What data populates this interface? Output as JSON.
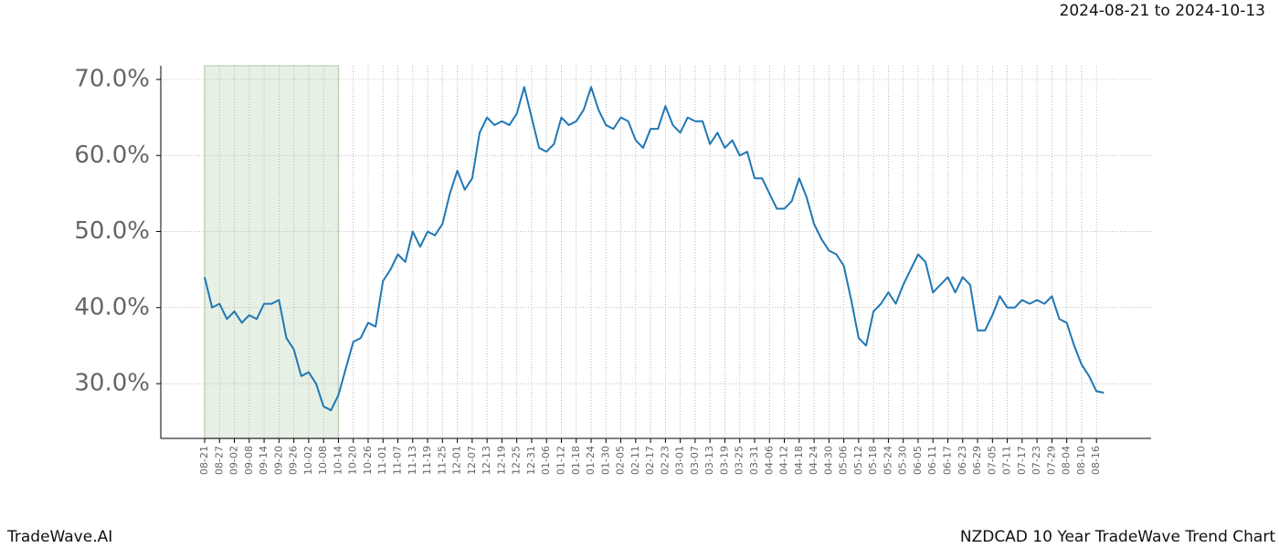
{
  "chart_data": {
    "type": "line",
    "title": "NZDCAD 10 Year TradeWave Trend Chart",
    "subtitle": "2024-08-21 to 2024-10-13",
    "brand": "TradeWave.AI",
    "categories": [
      "08-21",
      null,
      "08-27",
      null,
      "09-02",
      null,
      "09-08",
      null,
      "09-14",
      null,
      "09-20",
      null,
      "09-26",
      null,
      "10-02",
      null,
      "10-08",
      null,
      "10-14",
      null,
      "10-20",
      null,
      "10-26",
      null,
      "11-01",
      null,
      "11-07",
      null,
      "11-13",
      null,
      "11-19",
      null,
      "11-25",
      null,
      "12-01",
      null,
      "12-07",
      null,
      "12-13",
      null,
      "12-19",
      null,
      "12-25",
      null,
      "12-31",
      null,
      "01-06",
      null,
      "01-12",
      null,
      "01-18",
      null,
      "01-24",
      null,
      "01-30",
      null,
      "02-05",
      null,
      "02-11",
      null,
      "02-17",
      null,
      "02-23",
      null,
      "03-01",
      null,
      "03-07",
      null,
      "03-13",
      null,
      "03-19",
      null,
      "03-25",
      null,
      "03-31",
      null,
      "04-06",
      null,
      "04-12",
      null,
      "04-18",
      null,
      "04-24",
      null,
      "04-30",
      null,
      "05-06",
      null,
      "05-12",
      null,
      "05-18",
      null,
      "05-24",
      null,
      "05-30",
      null,
      "06-05",
      null,
      "06-11",
      null,
      "06-17",
      null,
      "06-23",
      null,
      "06-29",
      null,
      "07-05",
      null,
      "07-11",
      null,
      "07-17",
      null,
      "07-23",
      null,
      "07-29",
      null,
      "08-04",
      null,
      "08-10",
      null,
      "08-16",
      null
    ],
    "values": [
      44,
      40,
      40.5,
      38.5,
      39.5,
      38,
      39,
      38.5,
      40.5,
      40.5,
      41,
      36,
      34.5,
      31,
      31.5,
      30,
      27,
      26.5,
      28.5,
      32,
      35.5,
      36,
      38,
      37.5,
      43.5,
      45,
      47,
      46,
      50,
      48,
      50,
      49.5,
      51,
      55,
      58,
      55.5,
      57,
      63,
      65,
      64,
      64.5,
      64,
      65.5,
      69,
      65,
      61,
      60.5,
      61.5,
      65,
      64,
      64.5,
      66,
      69,
      66,
      64,
      63.5,
      65,
      64.5,
      62,
      61,
      63.5,
      63.5,
      66.5,
      64,
      63,
      65,
      64.5,
      64.5,
      61.5,
      63,
      61,
      62,
      60,
      60.5,
      57,
      57,
      55,
      53,
      53,
      54,
      57,
      54.5,
      51,
      49,
      47.5,
      47,
      45.5,
      41,
      36,
      35,
      39.5,
      40.5,
      42,
      40.5,
      43,
      45,
      47,
      46,
      42,
      43,
      44,
      42,
      44,
      43,
      37,
      37,
      39,
      41.5,
      40,
      40,
      41,
      40.5,
      41,
      40.5,
      41.5,
      38.5,
      38,
      35,
      32.5,
      31,
      29,
      28.8
    ],
    "color": "#1f77b4",
    "shaded_range": {
      "from": "08-21",
      "to": "10-14",
      "color": "#e6f0e4"
    },
    "ylim": [
      22.8,
      71.8
    ],
    "yticks": [
      {
        "value": 30,
        "label": "30.0%"
      },
      {
        "value": 40,
        "label": "40.0%"
      },
      {
        "value": 50,
        "label": "50.0%"
      },
      {
        "value": 60,
        "label": "60.0%"
      },
      {
        "value": 70,
        "label": "70.0%"
      }
    ],
    "grid": true
  }
}
